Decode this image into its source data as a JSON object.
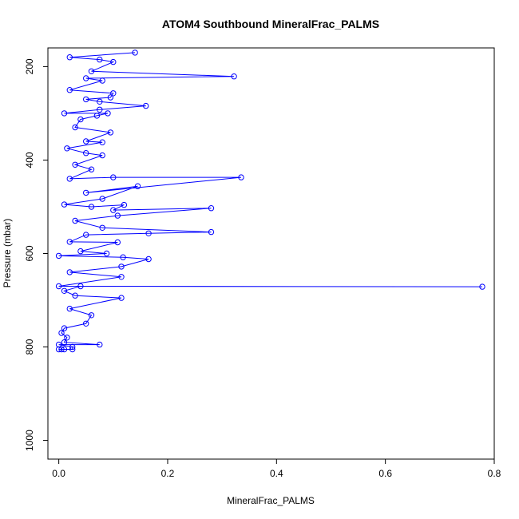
{
  "chart_data": {
    "type": "line",
    "title": "ATOM4 Southbound MineralFrac_PALMS",
    "xlabel": "MineralFrac_PALMS",
    "ylabel": "Pressure (mbar)",
    "xlim": [
      -0.02,
      0.8
    ],
    "ylim": [
      1040,
      160
    ],
    "y_reversed": true,
    "x_ticks": [
      0.0,
      0.2,
      0.4,
      0.6,
      0.8
    ],
    "x_tick_labels": [
      "0.0",
      "0.2",
      "0.4",
      "0.6",
      "0.8"
    ],
    "y_ticks": [
      200,
      400,
      600,
      800,
      1000
    ],
    "y_tick_labels": [
      "200",
      "400",
      "600",
      "800",
      "1000"
    ],
    "grid": false,
    "legend": "none",
    "color": "#0000ff",
    "marker": "open-circle",
    "series": [
      {
        "values_note": "",
        "points": [
          {
            "x": 0.0,
            "y": 805
          },
          {
            "x": 0.005,
            "y": 805
          },
          {
            "x": 0.01,
            "y": 805
          },
          {
            "x": 0.025,
            "y": 805
          },
          {
            "x": 0.025,
            "y": 800
          },
          {
            "x": 0.0,
            "y": 795
          },
          {
            "x": 0.075,
            "y": 795
          },
          {
            "x": 0.01,
            "y": 790
          },
          {
            "x": 0.015,
            "y": 780
          },
          {
            "x": 0.005,
            "y": 770
          },
          {
            "x": 0.01,
            "y": 760
          },
          {
            "x": 0.05,
            "y": 750
          },
          {
            "x": 0.06,
            "y": 732
          },
          {
            "x": 0.02,
            "y": 718
          },
          {
            "x": 0.115,
            "y": 695
          },
          {
            "x": 0.03,
            "y": 690
          },
          {
            "x": 0.01,
            "y": 680
          },
          {
            "x": 0.04,
            "y": 670
          },
          {
            "x": 0.778,
            "y": 671
          },
          {
            "x": 0.0,
            "y": 670
          },
          {
            "x": 0.115,
            "y": 650
          },
          {
            "x": 0.02,
            "y": 640
          },
          {
            "x": 0.115,
            "y": 628
          },
          {
            "x": 0.165,
            "y": 612
          },
          {
            "x": 0.118,
            "y": 608
          },
          {
            "x": 0.0,
            "y": 605
          },
          {
            "x": 0.088,
            "y": 600
          },
          {
            "x": 0.04,
            "y": 595
          },
          {
            "x": 0.108,
            "y": 576
          },
          {
            "x": 0.02,
            "y": 575
          },
          {
            "x": 0.05,
            "y": 560
          },
          {
            "x": 0.165,
            "y": 557
          },
          {
            "x": 0.28,
            "y": 554
          },
          {
            "x": 0.08,
            "y": 545
          },
          {
            "x": 0.03,
            "y": 530
          },
          {
            "x": 0.108,
            "y": 519
          },
          {
            "x": 0.28,
            "y": 503
          },
          {
            "x": 0.1,
            "y": 507
          },
          {
            "x": 0.12,
            "y": 496
          },
          {
            "x": 0.06,
            "y": 500
          },
          {
            "x": 0.01,
            "y": 495
          },
          {
            "x": 0.08,
            "y": 483
          },
          {
            "x": 0.145,
            "y": 456
          },
          {
            "x": 0.05,
            "y": 470
          },
          {
            "x": 0.335,
            "y": 437
          },
          {
            "x": 0.1,
            "y": 437
          },
          {
            "x": 0.02,
            "y": 440
          },
          {
            "x": 0.06,
            "y": 420
          },
          {
            "x": 0.03,
            "y": 410
          },
          {
            "x": 0.08,
            "y": 390
          },
          {
            "x": 0.05,
            "y": 385
          },
          {
            "x": 0.015,
            "y": 375
          },
          {
            "x": 0.08,
            "y": 362
          },
          {
            "x": 0.05,
            "y": 360
          },
          {
            "x": 0.095,
            "y": 341
          },
          {
            "x": 0.03,
            "y": 330
          },
          {
            "x": 0.04,
            "y": 313
          },
          {
            "x": 0.07,
            "y": 305
          },
          {
            "x": 0.09,
            "y": 300
          },
          {
            "x": 0.01,
            "y": 300
          },
          {
            "x": 0.075,
            "y": 292
          },
          {
            "x": 0.16,
            "y": 284
          },
          {
            "x": 0.075,
            "y": 275
          },
          {
            "x": 0.05,
            "y": 270
          },
          {
            "x": 0.095,
            "y": 266
          },
          {
            "x": 0.1,
            "y": 257
          },
          {
            "x": 0.02,
            "y": 250
          },
          {
            "x": 0.08,
            "y": 230
          },
          {
            "x": 0.05,
            "y": 225
          },
          {
            "x": 0.322,
            "y": 221
          },
          {
            "x": 0.06,
            "y": 210
          },
          {
            "x": 0.1,
            "y": 190
          },
          {
            "x": 0.075,
            "y": 185
          },
          {
            "x": 0.02,
            "y": 180
          },
          {
            "x": 0.14,
            "y": 170
          }
        ]
      }
    ]
  }
}
